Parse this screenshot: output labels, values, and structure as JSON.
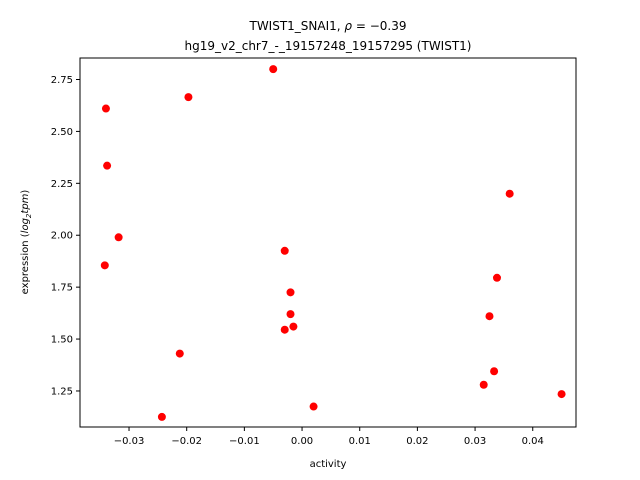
{
  "chart_data": {
    "type": "scatter",
    "title_line1_prefix": "TWIST1_SNAI1, ",
    "title_line1_rho": "ρ",
    "title_line1_value": " = −0.39",
    "title_line2": "hg19_v2_chr7_-_19157248_19157295 (TWIST1)",
    "xlabel": "activity",
    "ylabel_prefix": "expression (",
    "ylabel_log": "log",
    "ylabel_sub": "2",
    "ylabel_tpm": "tpm",
    "ylabel_suffix": ")",
    "xlim": [
      -0.0385,
      0.0475
    ],
    "ylim": [
      1.0765,
      2.8535
    ],
    "xticks": [
      -0.03,
      -0.02,
      -0.01,
      0.0,
      0.01,
      0.02,
      0.03,
      0.04
    ],
    "xtick_labels": [
      "−0.03",
      "−0.02",
      "−0.01",
      "0.00",
      "0.01",
      "0.02",
      "0.03",
      "0.04"
    ],
    "yticks": [
      1.25,
      1.5,
      1.75,
      2.0,
      2.25,
      2.5,
      2.75
    ],
    "ytick_labels": [
      "1.25",
      "1.50",
      "1.75",
      "2.00",
      "2.25",
      "2.50",
      "2.75"
    ],
    "grid": false,
    "marker_color": "#ff0000",
    "points": [
      {
        "x": -0.005,
        "y": 2.8
      },
      {
        "x": -0.034,
        "y": 2.61
      },
      {
        "x": -0.0197,
        "y": 2.665
      },
      {
        "x": -0.0338,
        "y": 2.335
      },
      {
        "x": -0.0318,
        "y": 1.99
      },
      {
        "x": -0.0342,
        "y": 1.855
      },
      {
        "x": -0.0212,
        "y": 1.43
      },
      {
        "x": -0.0243,
        "y": 1.125
      },
      {
        "x": -0.003,
        "y": 1.925
      },
      {
        "x": -0.002,
        "y": 1.725
      },
      {
        "x": -0.002,
        "y": 1.62
      },
      {
        "x": -0.0015,
        "y": 1.56
      },
      {
        "x": -0.003,
        "y": 1.545
      },
      {
        "x": 0.002,
        "y": 1.175
      },
      {
        "x": 0.036,
        "y": 2.2
      },
      {
        "x": 0.0338,
        "y": 1.795
      },
      {
        "x": 0.0325,
        "y": 1.61
      },
      {
        "x": 0.0333,
        "y": 1.345
      },
      {
        "x": 0.0315,
        "y": 1.28
      },
      {
        "x": 0.045,
        "y": 1.235
      }
    ]
  }
}
